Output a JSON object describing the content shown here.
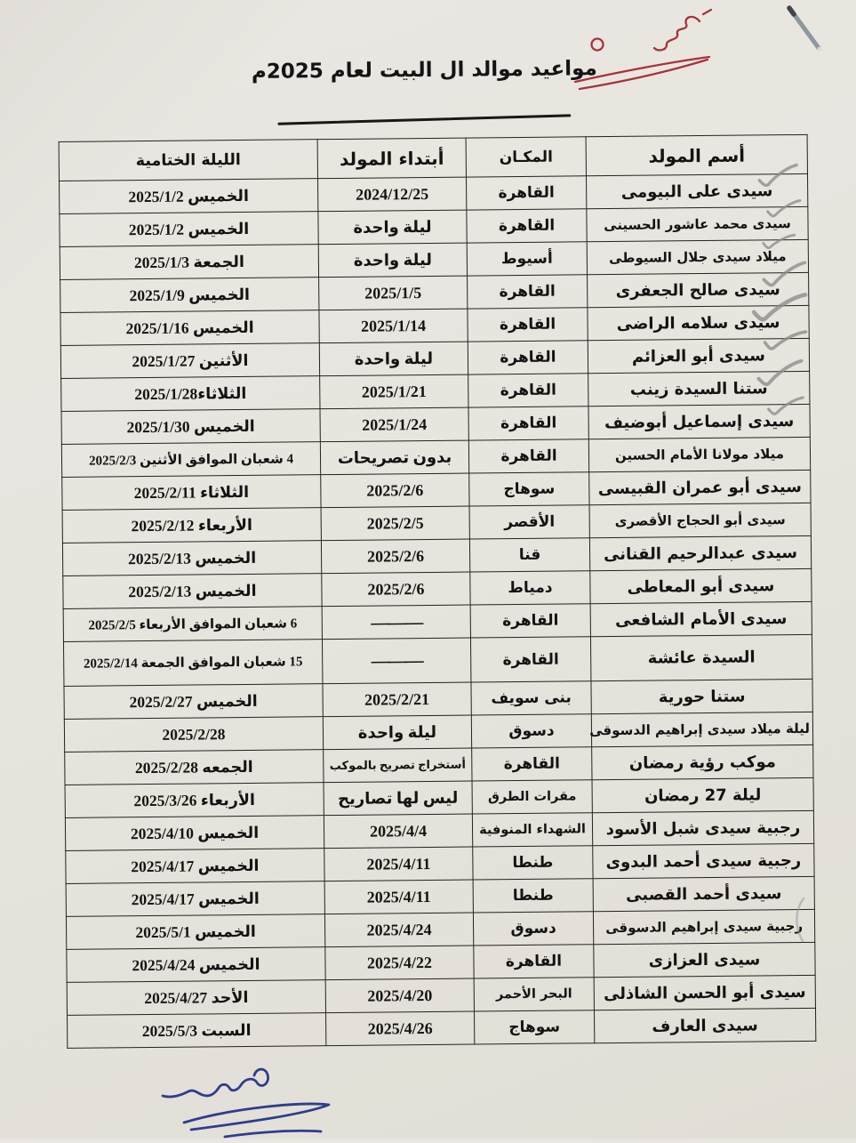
{
  "page": {
    "title": "مواعيد موالد ال البيت لعام 2025م"
  },
  "table": {
    "headers": {
      "name": "أسم المولد",
      "location": "المكـان",
      "start": "أبتداء المولد",
      "closing": "الليلة الختامية"
    },
    "rows": [
      {
        "name": "سيدى على البيومى",
        "location": "القاهرة",
        "start": "2024/12/25",
        "closing": "الخميس 2025/1/2",
        "checked": true
      },
      {
        "name": "سيدى محمد عاشور الحسينى",
        "location": "القاهرة",
        "start": "ليلة واحدة",
        "closing": "الخميس 2025/1/2",
        "checked": true
      },
      {
        "name": "ميلاد سيدى جلال السيوطى",
        "location": "أسيوط",
        "start": "ليلة واحدة",
        "closing": "الجمعة 2025/1/3",
        "checked": true
      },
      {
        "name": "سيدى صالح الجعفرى",
        "location": "القاهرة",
        "start": "2025/1/5",
        "closing": "الخميس 2025/1/9",
        "checked": true
      },
      {
        "name": "سيدى سلامه الراضى",
        "location": "القاهرة",
        "start": "2025/1/14",
        "closing": "الخميس 2025/1/16",
        "checked": true
      },
      {
        "name": "سيدى أبو العزائم",
        "location": "القاهرة",
        "start": "ليلة واحدة",
        "closing": "الأثنين 2025/1/27",
        "checked": true
      },
      {
        "name": "ستنا السيدة زينب",
        "location": "القاهرة",
        "start": "2025/1/21",
        "closing": "الثلاثاء2025/1/28",
        "checked": true
      },
      {
        "name": "سيدى إسماعيل أبوضيف",
        "location": "القاهرة",
        "start": "2025/1/24",
        "closing": "الخميس 2025/1/30",
        "checked": true
      },
      {
        "name": "ميلاد مولانا الأمام الحسين",
        "location": "القاهرة",
        "start": "بدون تصريحات",
        "closing": "4 شعبان الموافق الأثنين 2025/2/3",
        "checked": false
      },
      {
        "name": "سيدى أبو عمران القبيسى",
        "location": "سوهاج",
        "start": "2025/2/6",
        "closing": "الثلاثاء 2025/2/11",
        "checked": false
      },
      {
        "name": "سيدى أبو الحجاج الأقصرى",
        "location": "الأقصر",
        "start": "2025/2/5",
        "closing": "الأربعاء 2025/2/12",
        "checked": false
      },
      {
        "name": "سيدى عبدالرحيم القنانى",
        "location": "قنا",
        "start": "2025/2/6",
        "closing": "الخميس 2025/2/13",
        "checked": false
      },
      {
        "name": "سيدى أبو المعاطى",
        "location": "دمياط",
        "start": "2025/2/6",
        "closing": "الخميس 2025/2/13",
        "checked": false
      },
      {
        "name": "سيدى الأمام الشافعى",
        "location": "القاهرة",
        "start": "———",
        "closing": "6 شعبان الموافق الأربعاء 2025/2/5",
        "dash": true,
        "checked": false
      },
      {
        "name": "السيدة عائشة",
        "location": "القاهرة",
        "start": "———",
        "closing": "15 شعبان الموافق الجمعة 2025/2/14",
        "dash": true,
        "tall": true,
        "checked": false
      },
      {
        "name": "ستنا حورية",
        "location": "بنى سويف",
        "start": "2025/2/21",
        "closing": "الخميس 2025/2/27",
        "checked": false
      },
      {
        "name": "ليلة ميلاد سيدى إبراهيم الدسوقى",
        "location": "دسوق",
        "start": "ليلة واحدة",
        "closing": "2025/2/28",
        "checked": false
      },
      {
        "name": "موكب رؤية رمضان",
        "location": "القاهرة",
        "start": "أستخراج تصريح بالموكب",
        "closing": "الجمعه 2025/2/28",
        "small_start": true,
        "checked": false
      },
      {
        "name": "ليلة 27 رمضان",
        "location": "مقرات الطرق",
        "start": "ليس لها تصاريح",
        "closing": "الأربعاء 2025/3/26",
        "checked": false
      },
      {
        "name": "رجبية سيدى شبل الأسود",
        "location": "الشهداء المنوفية",
        "start": "2025/4/4",
        "closing": "الخميس 2025/4/10",
        "checked": false
      },
      {
        "name": "رجبية سيدى أحمد البدوى",
        "location": "طنطا",
        "start": "2025/4/11",
        "closing": "الخميس 2025/4/17",
        "checked": false
      },
      {
        "name": "سيدى أحمد القصبى",
        "location": "طنطا",
        "start": "2025/4/11",
        "closing": "الخميس 2025/4/17",
        "checked": false
      },
      {
        "name": "رجبية سيدى إبراهيم الدسوقى",
        "location": "دسوق",
        "start": "2025/4/24",
        "closing": "الخميس 2025/5/1",
        "checked": false
      },
      {
        "name": "سيدى العزازى",
        "location": "القاهرة",
        "start": "2025/4/22",
        "closing": "الخميس 2025/4/24",
        "checked": false
      },
      {
        "name": "سيدى أبو الحسن الشاذلى",
        "location": "البحر الأحمر",
        "start": "2025/4/20",
        "closing": "الأحد 2025/4/27",
        "checked": false
      },
      {
        "name": "سيدى العارف",
        "location": "سوهاج",
        "start": "2025/4/26",
        "closing": "السبت 2025/5/3",
        "checked": false
      }
    ]
  },
  "annotations": {
    "red_handwriting": {
      "color": "#a8323a"
    },
    "pen_mark_top_right": {
      "color": "#8f979e"
    },
    "pencil_checkmarks": {
      "color": "#8d8d8d",
      "checked_row_count": 8
    },
    "pencil_parenthesis": {
      "color": "#9a9aa2"
    },
    "blue_signature": {
      "color": "#2e3d8e"
    },
    "paper_color": "#e8e5df",
    "table_line_color": "#222222"
  }
}
